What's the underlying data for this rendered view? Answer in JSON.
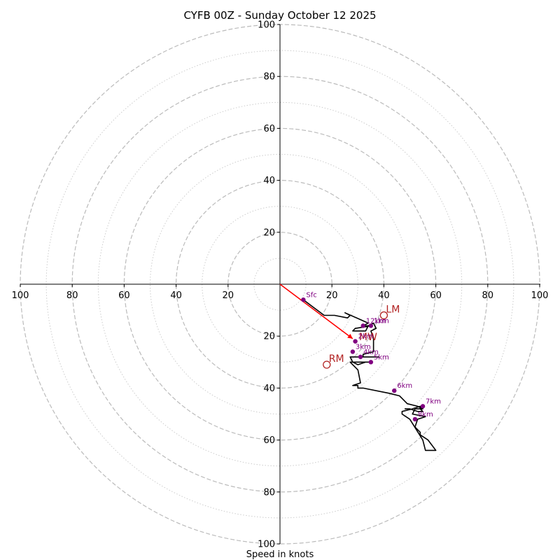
{
  "chart_data": {
    "type": "hodograph",
    "title": "CYFB 00Z - Sunday October 12 2025",
    "xlabel": "Speed in knots",
    "xlim": [
      -100,
      100
    ],
    "ylim": [
      -100,
      100
    ],
    "rings_major": [
      20,
      40,
      60,
      80,
      100
    ],
    "rings_minor": [
      10,
      30,
      50,
      70,
      90
    ],
    "x_tick_labels": [
      "100",
      "80",
      "60",
      "40",
      "20",
      "20",
      "40",
      "60",
      "80",
      "100"
    ],
    "y_tick_labels": [
      "100",
      "80",
      "60",
      "40",
      "20",
      "20",
      "40",
      "60",
      "80",
      "100"
    ],
    "hodograph_trace": {
      "name": "Wind profile",
      "color": "#000000",
      "u": [
        9,
        13,
        17,
        21,
        26,
        27,
        25,
        34,
        32,
        35,
        29,
        28,
        33,
        34,
        36,
        37,
        35,
        36,
        36,
        36,
        32,
        32,
        38,
        30,
        27,
        28,
        30,
        33,
        35,
        29,
        27,
        30,
        31,
        28,
        30,
        30,
        31,
        32,
        42,
        46,
        47,
        49,
        53,
        55,
        52,
        51,
        56,
        53,
        52,
        54,
        54,
        57,
        60,
        56,
        55,
        50,
        47,
        47,
        51,
        54,
        54,
        55,
        53,
        50,
        48
      ],
      "v": [
        -6,
        -9,
        -12,
        -12,
        -13,
        -12,
        -11,
        -15,
        -16,
        -16,
        -17,
        -18,
        -18,
        -16,
        -15,
        -17,
        -18,
        -21,
        -24,
        -26,
        -27,
        -28,
        -28,
        -28,
        -28,
        -30,
        -31,
        -30,
        -30,
        -30,
        -30,
        -33,
        -38,
        -39,
        -39,
        -40,
        -40,
        -40,
        -42,
        -43,
        -44,
        -46,
        -47,
        -48,
        -48,
        -50,
        -51,
        -52,
        -55,
        -57,
        -58,
        -60,
        -64,
        -64,
        -60,
        -52,
        -50,
        -49,
        -48,
        -47,
        -48,
        -49,
        -49,
        -48,
        -48
      ]
    },
    "height_markers": {
      "color": "#800080",
      "points": [
        {
          "label": "Sfc",
          "u": 9,
          "v": -6
        },
        {
          "label": "1km",
          "u": 35,
          "v": -16
        },
        {
          "label": "12km",
          "u": 32,
          "v": -16
        },
        {
          "label": "2km",
          "u": 29,
          "v": -22
        },
        {
          "label": "3km",
          "u": 28,
          "v": -26
        },
        {
          "label": "4km",
          "u": 31,
          "v": -28
        },
        {
          "label": "5km",
          "u": 35,
          "v": -30
        },
        {
          "label": "6km",
          "u": 44,
          "v": -41
        },
        {
          "label": "7km",
          "u": 55,
          "v": -47
        },
        {
          "label": "8km",
          "u": 52,
          "v": -52
        }
      ]
    },
    "mean_wind_vector": {
      "label": "MW",
      "u": 28,
      "v": -21,
      "color": "#ff0000"
    },
    "storm_motions": {
      "color": "#b22222",
      "points": [
        {
          "label": "LM",
          "u": 40,
          "v": -12
        },
        {
          "label": "RM",
          "u": 18,
          "v": -31
        }
      ]
    }
  }
}
